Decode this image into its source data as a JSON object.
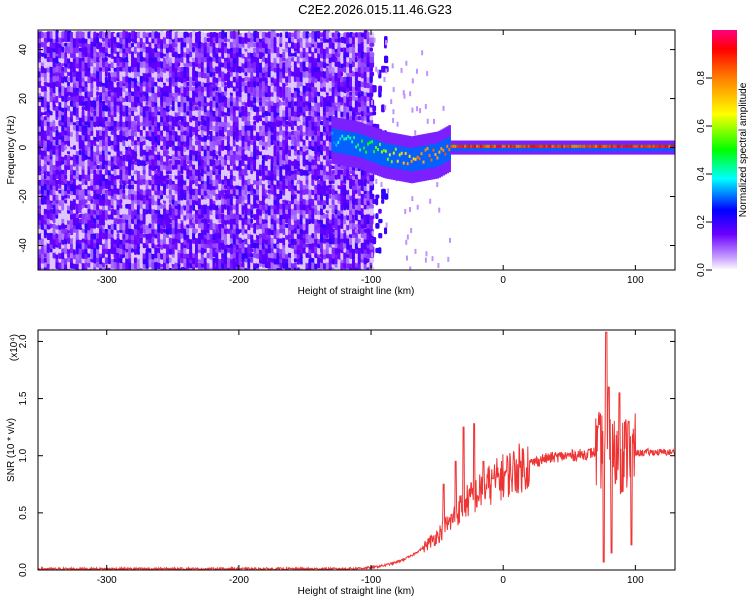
{
  "title": "C2E2.2026.015.11.46.G23",
  "chart_data": [
    {
      "type": "heatmap",
      "xlabel": "Height of straight line (km)",
      "ylabel": "Frequency (Hz)",
      "xlim": [
        -352,
        130
      ],
      "ylim": [
        -50,
        48
      ],
      "xticks": [
        -300,
        -200,
        -100,
        0,
        100
      ],
      "yticks": [
        -40,
        -20,
        0,
        20,
        40
      ],
      "colorbar": {
        "label": "Normalized spectral amplitude",
        "range": [
          0,
          1
        ],
        "ticks": [
          "0.0",
          "0.2",
          "0.4",
          "0.6",
          "0.8"
        ],
        "tick_values": [
          0.0,
          0.2,
          0.4,
          0.6,
          0.8
        ]
      },
      "noise_region_x": [
        -352,
        -100
      ],
      "signal_line": {
        "x": [
          -130,
          -120,
          -110,
          -100,
          -90,
          -80,
          -70,
          -60,
          -50,
          -40,
          -30,
          -20,
          -10,
          0,
          20,
          40,
          60,
          80,
          100,
          130
        ],
        "frequency": [
          3,
          2,
          1,
          -1,
          -3,
          -4,
          -5,
          -4,
          -3,
          0,
          0,
          0,
          0,
          0,
          0,
          0,
          0,
          0,
          0,
          0
        ],
        "amplitude": [
          0.35,
          0.45,
          0.5,
          0.55,
          0.6,
          0.7,
          0.8,
          0.85,
          0.85,
          0.9,
          0.95,
          0.95,
          0.95,
          0.95,
          0.95,
          0.95,
          0.9,
          0.95,
          0.95,
          0.95
        ]
      }
    },
    {
      "type": "line",
      "xlabel": "Height of straight line (km)",
      "ylabel": "SNR (10 * v/v)",
      "y_multiplier": "(x10⁴)",
      "xlim": [
        -352,
        130
      ],
      "ylim": [
        0,
        2.1
      ],
      "xticks": [
        -300,
        -200,
        -100,
        0,
        100
      ],
      "yticks": [
        0.0,
        0.5,
        1.0,
        1.5,
        2.0
      ],
      "ytick_labels": [
        "0.0",
        "0.5",
        "1.0",
        "1.5",
        "2.0"
      ],
      "color": "#ee3333",
      "x": [
        -352,
        -300,
        -200,
        -120,
        -100,
        -90,
        -80,
        -70,
        -60,
        -50,
        -40,
        -35,
        -30,
        -25,
        -20,
        -15,
        -10,
        0,
        10,
        20,
        30,
        40,
        50,
        60,
        70,
        75,
        78,
        80,
        85,
        90,
        95,
        100,
        110,
        120,
        130
      ],
      "y": [
        0.01,
        0.01,
        0.01,
        0.01,
        0.02,
        0.04,
        0.07,
        0.12,
        0.2,
        0.3,
        0.42,
        0.5,
        0.58,
        0.62,
        0.66,
        0.7,
        0.75,
        0.82,
        0.88,
        0.93,
        0.97,
        0.99,
        1.0,
        1.01,
        1.03,
        1.05,
        1.1,
        1.02,
        1.0,
        1.01,
        1.02,
        1.02,
        1.03,
        1.03,
        1.03
      ],
      "peaks": [
        {
          "x": -45,
          "y": 0.75
        },
        {
          "x": -36,
          "y": 0.95
        },
        {
          "x": -30,
          "y": 1.25
        },
        {
          "x": -22,
          "y": 1.28
        },
        {
          "x": -15,
          "y": 0.95
        },
        {
          "x": -8,
          "y": 0.8
        },
        {
          "x": 78,
          "y": 2.08
        },
        {
          "x": 80,
          "y": 1.6
        },
        {
          "x": 88,
          "y": 1.55
        },
        {
          "x": 95,
          "y": 1.3
        }
      ],
      "dips": [
        {
          "x": 76,
          "y": 0.07
        },
        {
          "x": 82,
          "y": 0.15
        },
        {
          "x": 97,
          "y": 0.22
        }
      ]
    }
  ]
}
